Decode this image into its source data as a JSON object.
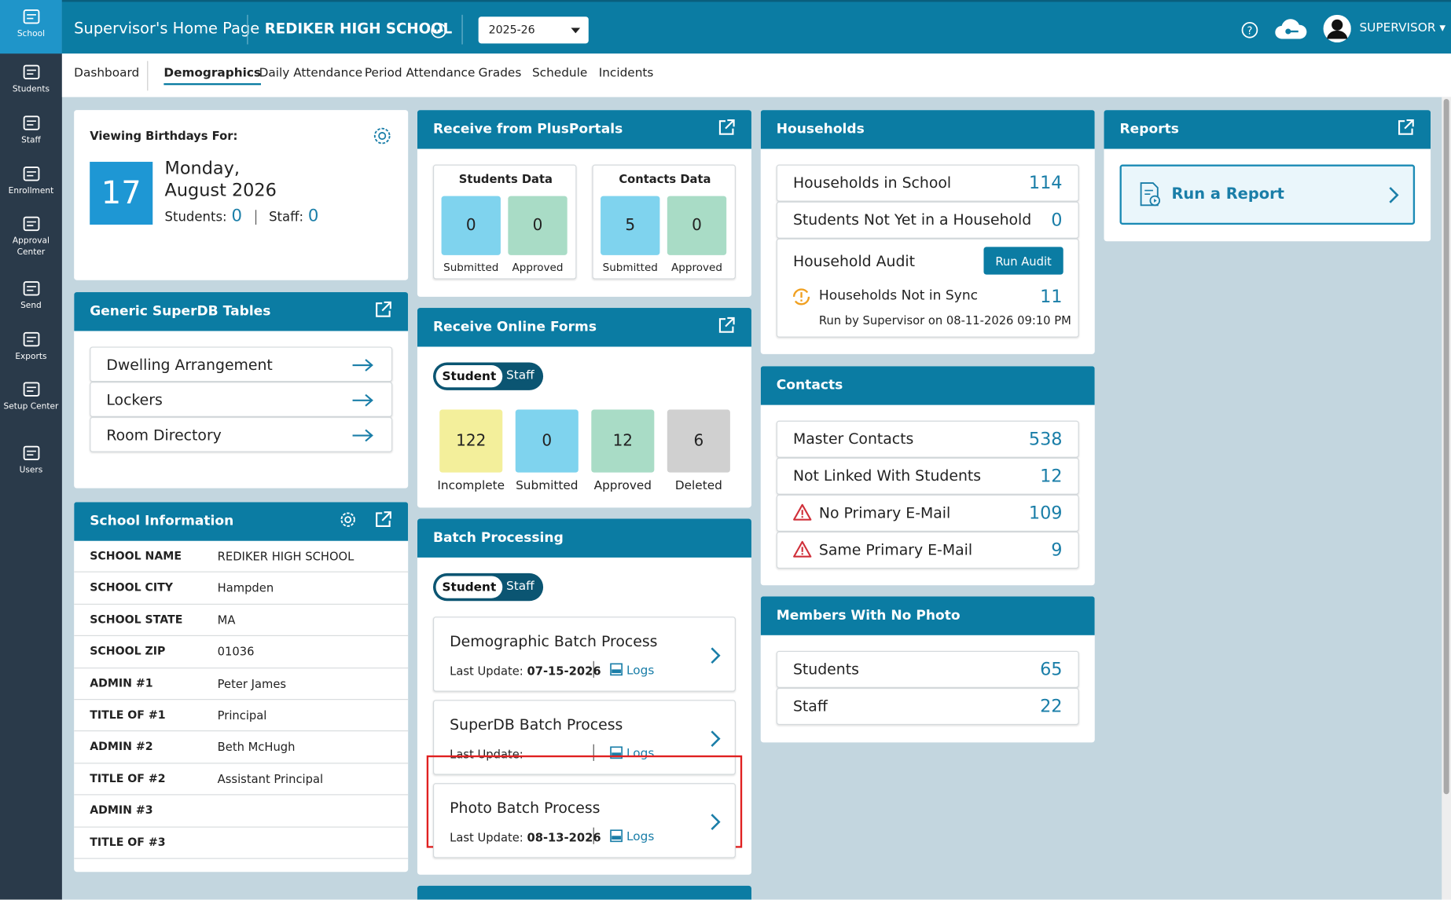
{
  "sidebar": {
    "items": [
      "School",
      "Students",
      "Staff",
      "Enrollment",
      "Approval Center",
      "Send",
      "Exports",
      "Setup Center",
      "Users"
    ]
  },
  "header": {
    "title": "Supervisor's Home Page",
    "school": "REDIKER HIGH SCHOOL",
    "year": "2025-26",
    "user": "SUPERVISOR"
  },
  "tabs": {
    "items": [
      "Dashboard",
      "Demographics",
      "Daily Attendance",
      "Period Attendance",
      "Grades",
      "Schedule",
      "Incidents"
    ],
    "active": 1
  },
  "birthdays": {
    "label": "Viewing Birthdays For:",
    "day": "17",
    "weekday": "Monday,",
    "month": "August 2026",
    "students_label": "Students:",
    "students": 0,
    "staff_label": "Staff:",
    "staff": 0
  },
  "superdb": {
    "title": "Generic SuperDB Tables",
    "items": [
      "Dwelling Arrangement",
      "Lockers",
      "Room Directory"
    ]
  },
  "school_info": {
    "title": "School Information",
    "rows": [
      [
        "SCHOOL NAME",
        "REDIKER HIGH SCHOOL"
      ],
      [
        "SCHOOL CITY",
        "Hampden"
      ],
      [
        "SCHOOL STATE",
        "MA"
      ],
      [
        "SCHOOL ZIP",
        "01036"
      ],
      [
        "ADMIN #1",
        "Peter James"
      ],
      [
        "TITLE OF #1",
        "Principal"
      ],
      [
        "ADMIN #2",
        "Beth McHugh"
      ],
      [
        "TITLE OF #2",
        "Assistant Principal"
      ],
      [
        "ADMIN #3"
      ],
      [
        "TITLE OF #3"
      ]
    ]
  },
  "plusportals": {
    "title": "Receive from PlusPortals",
    "groups": [
      {
        "title": "Students Data",
        "tiles": [
          {
            "value": 0,
            "label": "Submitted"
          },
          {
            "value": 0,
            "label": "Approved"
          }
        ]
      },
      {
        "title": "Contacts Data",
        "tiles": [
          {
            "value": 5,
            "label": "Submitted"
          },
          {
            "value": 0,
            "label": "Approved"
          }
        ]
      }
    ]
  },
  "online_forms": {
    "title": "Receive Online Forms",
    "toggle": [
      "Student",
      "Staff"
    ],
    "tiles": [
      {
        "value": 122,
        "label": "Incomplete",
        "color": "#f3ef9b"
      },
      {
        "value": 0,
        "label": "Submitted",
        "color": "#7fd3ee"
      },
      {
        "value": 12,
        "label": "Approved",
        "color": "#a9dcc6"
      },
      {
        "value": 6,
        "label": "Deleted",
        "color": "#d0d0d0"
      }
    ]
  },
  "batch": {
    "title": "Batch Processing",
    "toggle": [
      "Student",
      "Staff"
    ],
    "update_label": "Last Update:",
    "logs": "Logs",
    "items": [
      {
        "name": "Demographic Batch Process",
        "date": "07-15-2026"
      },
      {
        "name": "SuperDB Batch Process"
      },
      {
        "name": "Photo Batch Process",
        "date": "08-13-2026",
        "highlight": true
      }
    ]
  },
  "households": {
    "title": "Households",
    "rows": [
      {
        "label": "Households in School",
        "value": 114
      },
      {
        "label": "Students Not Yet in a Household",
        "value": 0
      }
    ],
    "audit": {
      "label": "Household Audit",
      "button": "Run Audit",
      "sync_label": "Households Not in Sync",
      "sync_value": 11,
      "run_by": "Run by Supervisor on",
      "run_at": "08-11-2026 09:10 PM"
    }
  },
  "contacts": {
    "title": "Contacts",
    "rows": [
      {
        "label": "Master Contacts",
        "value": 538
      },
      {
        "label": "Not Linked With Students",
        "value": 12
      },
      {
        "label": "No Primary E-Mail",
        "value": 109,
        "warning": true
      },
      {
        "label": "Same Primary E-Mail",
        "value": 9,
        "warning": true
      }
    ]
  },
  "no_photo": {
    "title": "Members With No Photo",
    "rows": [
      {
        "label": "Students",
        "value": 65
      },
      {
        "label": "Staff",
        "value": 22
      }
    ]
  },
  "reports": {
    "title": "Reports",
    "action": "Run a Report"
  }
}
